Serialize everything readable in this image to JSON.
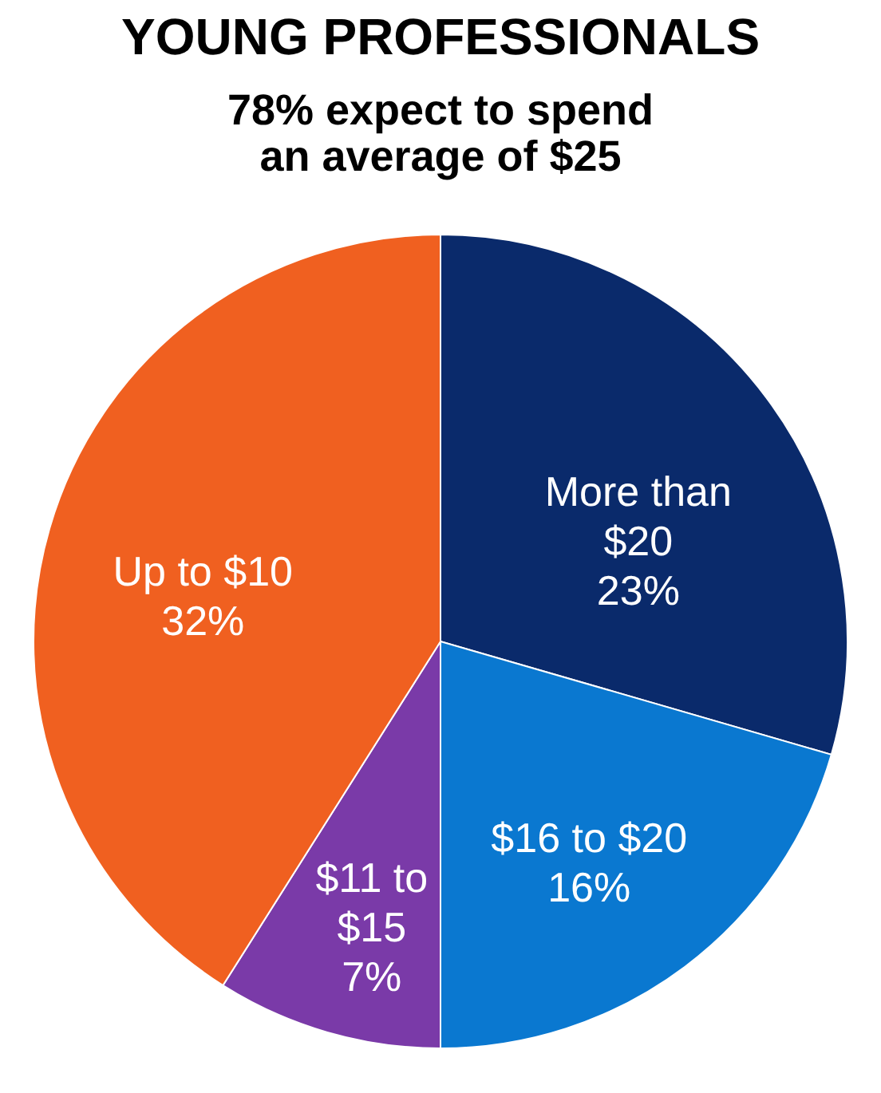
{
  "chart_data": {
    "type": "pie",
    "title": "YOUNG PROFESSIONALS",
    "subtitle": "78% expect to spend an average of $25",
    "categories": [
      "More than $20",
      "$16 to $20",
      "$11 to $15",
      "Up to $10"
    ],
    "values": [
      23,
      16,
      7,
      32
    ],
    "value_labels": [
      "23%",
      "16%",
      "7%",
      "32%"
    ],
    "colors": [
      "#0a2a6b",
      "#0a78d0",
      "#7a3aa8",
      "#f06020"
    ]
  }
}
